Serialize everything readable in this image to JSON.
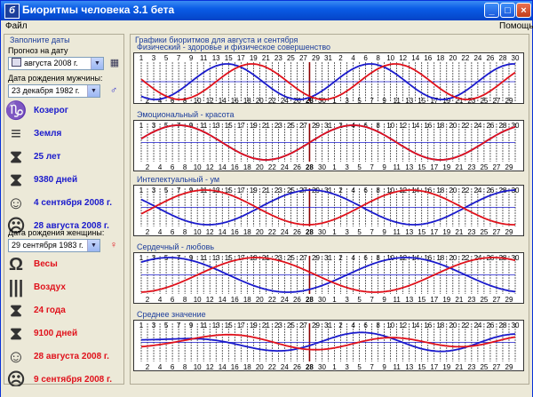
{
  "window": {
    "title": "Биоритмы человека 3.1 бета",
    "minimize": "_",
    "maximize": "□",
    "close": "×"
  },
  "menu": {
    "file": "Файл",
    "help": "Помощь"
  },
  "left": {
    "group_label": "Заполните даты",
    "forecast_label": "Прогноз на дату",
    "forecast_value": "августа  2008 г.",
    "man_label": "Дата рождения мужчины:",
    "man_value": "23 декабря  1982 г.",
    "woman_label": "Дата рождения женщины:",
    "woman_value": "29 сентября 1983 г.",
    "man_rows": [
      {
        "icon": "zodiac-capricorn-icon",
        "glyph": "♑",
        "text": "Козерог"
      },
      {
        "icon": "element-earth-icon",
        "glyph": "≡",
        "text": "Земля"
      },
      {
        "icon": "hourglass-icon",
        "glyph": "⧗",
        "text": "25 лет"
      },
      {
        "icon": "hourglass-icon",
        "glyph": "⧗",
        "text": "9380 дней"
      },
      {
        "icon": "smile-icon",
        "glyph": "☺",
        "text": "4 сентября 2008 г."
      },
      {
        "icon": "sad-icon",
        "glyph": "☹",
        "text": "28 августа 2008 г."
      }
    ],
    "woman_rows": [
      {
        "icon": "zodiac-libra-icon",
        "glyph": "Ω",
        "text": "Весы"
      },
      {
        "icon": "element-air-icon",
        "glyph": "|||",
        "text": "Воздух"
      },
      {
        "icon": "hourglass-icon",
        "glyph": "⧗",
        "text": "24 года"
      },
      {
        "icon": "hourglass-icon",
        "glyph": "⧗",
        "text": "9100 дней"
      },
      {
        "icon": "smile-icon",
        "glyph": "☺",
        "text": "28 августа 2008 г."
      },
      {
        "icon": "sad-icon",
        "glyph": "☹",
        "text": "9 сентября 2008 г."
      }
    ]
  },
  "right": {
    "group_label": "Графики биоритмов для августа и сентября"
  },
  "colors": {
    "male": "#1a1acc",
    "female": "#e0111b",
    "grid": "#000000",
    "today": "#8b0000"
  },
  "chart_data": [
    {
      "type": "line",
      "title": "Физический - здоровье и физическое совершенство",
      "period": 23,
      "male_phase": 0,
      "female_phase": 0,
      "today": 28,
      "x_august_days": [
        1,
        2,
        3,
        4,
        5,
        6,
        7,
        8,
        9,
        10,
        11,
        12,
        13,
        14,
        15,
        16,
        17,
        18,
        19,
        20,
        21,
        22,
        23,
        24,
        25,
        26,
        27,
        28,
        29,
        30,
        31
      ],
      "x_september_days": [
        1,
        2,
        3,
        4,
        5,
        6,
        7,
        8,
        9,
        10,
        11,
        12,
        13,
        14,
        15,
        16,
        17,
        18,
        19,
        20,
        21,
        22,
        23,
        24,
        25,
        26,
        27,
        28,
        29,
        30
      ]
    },
    {
      "type": "line",
      "title": "Эмоциональный - красота",
      "period": 28,
      "male_phase": 0,
      "female_phase": 0,
      "today": 28,
      "x_august_days": [
        1,
        2,
        3,
        4,
        5,
        6,
        7,
        8,
        9,
        10,
        11,
        12,
        13,
        14,
        15,
        16,
        17,
        18,
        19,
        20,
        21,
        22,
        23,
        24,
        25,
        26,
        27,
        28,
        29,
        30,
        31
      ],
      "x_september_days": [
        1,
        2,
        3,
        4,
        5,
        6,
        7,
        8,
        9,
        10,
        11,
        12,
        13,
        14,
        15,
        16,
        17,
        18,
        19,
        20,
        21,
        22,
        23,
        24,
        25,
        26,
        27,
        28,
        29,
        30
      ]
    },
    {
      "type": "line",
      "title": "Интелектуальный - ум",
      "period": 33,
      "male_phase": 0,
      "female_phase": 0,
      "today": 28,
      "x_august_days": [
        1,
        2,
        3,
        4,
        5,
        6,
        7,
        8,
        9,
        10,
        11,
        12,
        13,
        14,
        15,
        16,
        17,
        18,
        19,
        20,
        21,
        22,
        23,
        24,
        25,
        26,
        27,
        28,
        29,
        30,
        31
      ],
      "x_september_days": [
        1,
        2,
        3,
        4,
        5,
        6,
        7,
        8,
        9,
        10,
        11,
        12,
        13,
        14,
        15,
        16,
        17,
        18,
        19,
        20,
        21,
        22,
        23,
        24,
        25,
        26,
        27,
        28,
        29,
        30
      ]
    },
    {
      "type": "line",
      "title": "Сердечный - любовь",
      "period": 38,
      "male_phase": 0,
      "female_phase": 0,
      "today": 28,
      "x_august_days": [
        1,
        2,
        3,
        4,
        5,
        6,
        7,
        8,
        9,
        10,
        11,
        12,
        13,
        14,
        15,
        16,
        17,
        18,
        19,
        20,
        21,
        22,
        23,
        24,
        25,
        26,
        27,
        28,
        29,
        30,
        31
      ],
      "x_september_days": [
        1,
        2,
        3,
        4,
        5,
        6,
        7,
        8,
        9,
        10,
        11,
        12,
        13,
        14,
        15,
        16,
        17,
        18,
        19,
        20,
        21,
        22,
        23,
        24,
        25,
        26,
        27,
        28,
        29,
        30
      ]
    },
    {
      "type": "line",
      "title": "Среднее значение",
      "period": 0,
      "male_phase": 0,
      "female_phase": 0,
      "today": 28,
      "x_august_days": [
        1,
        2,
        3,
        4,
        5,
        6,
        7,
        8,
        9,
        10,
        11,
        12,
        13,
        14,
        15,
        16,
        17,
        18,
        19,
        20,
        21,
        22,
        23,
        24,
        25,
        26,
        27,
        28,
        29,
        30,
        31
      ],
      "x_september_days": [
        1,
        2,
        3,
        4,
        5,
        6,
        7,
        8,
        9,
        10,
        11,
        12,
        13,
        14,
        15,
        16,
        17,
        18,
        19,
        20,
        21,
        22,
        23,
        24,
        25,
        26,
        27,
        28,
        29,
        30
      ]
    }
  ]
}
